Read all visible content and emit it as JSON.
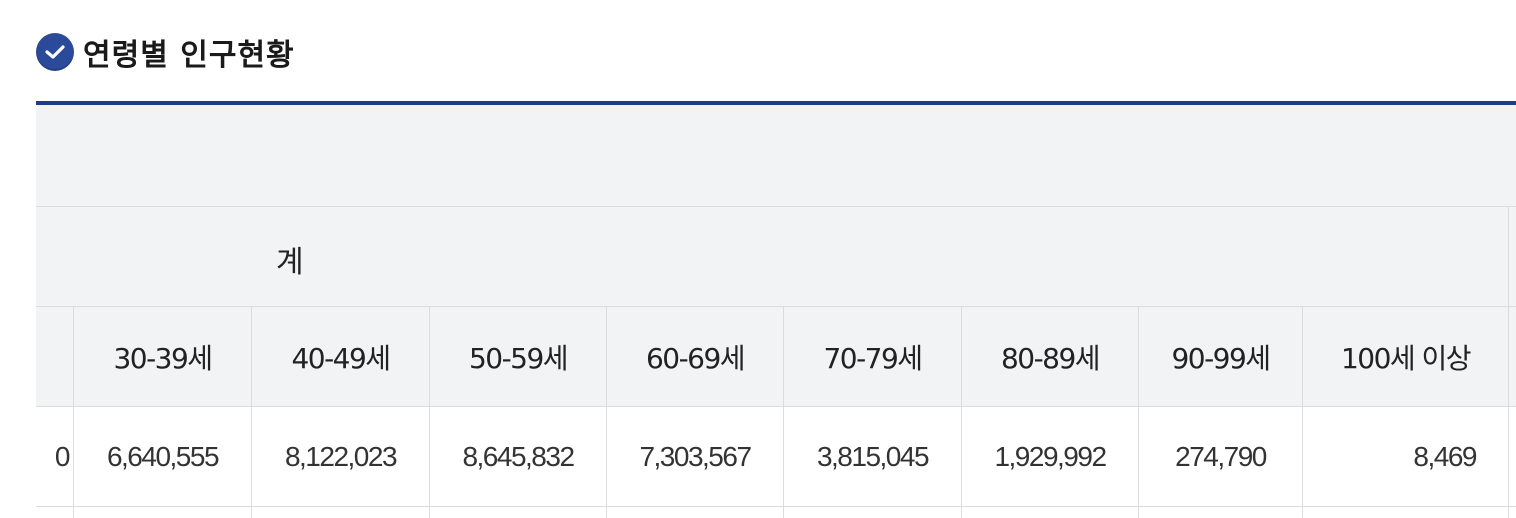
{
  "title": "연령별 인구현황",
  "table": {
    "group_label": "계",
    "headers": [
      "30-39세",
      "40-49세",
      "50-59세",
      "60-69세",
      "70-79세",
      "80-89세",
      "90-99세",
      "100세 이상"
    ],
    "row_partial_value": "0",
    "row_values": [
      "6,640,555",
      "8,122,023",
      "8,645,832",
      "7,303,567",
      "3,815,045",
      "1,929,992",
      "274,790",
      "8,469"
    ]
  },
  "colors": {
    "accent": "#1f3c88",
    "icon": "#2c4a9a",
    "header_bg": "#f2f3f5",
    "border": "#dcdcdc"
  },
  "icons": {
    "title_icon": "check-circle-icon"
  }
}
